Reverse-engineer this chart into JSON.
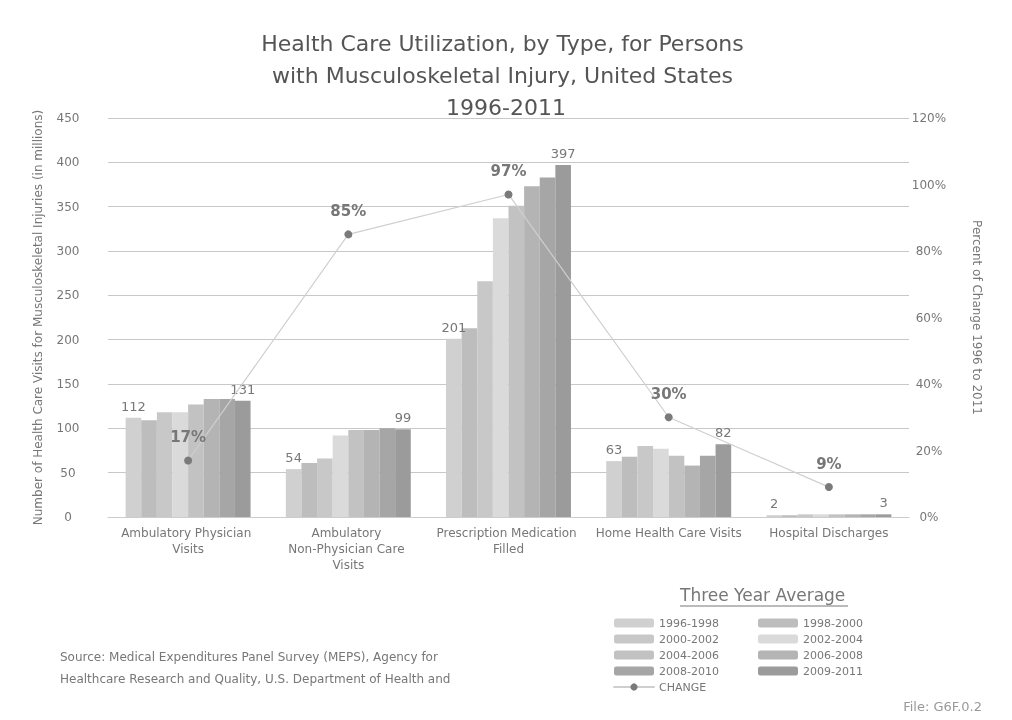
{
  "chart_data": {
    "type": "bar",
    "title": "Health Care Utilization, by Type, for Persons with Musculoskeletal Injury, United States 1996-2011",
    "ylabel": "Number of Health Care Visits for Musculoskeletal Injuries (in millions)",
    "y2label": "Percent of Change 1996 to 2011",
    "legend_title": "Three Year Average",
    "annotations": [
      "Source: Medical Expenditures Panel Survey (MEPS), Agency for Healthcare Research and Quality, U.S. Department of Health and",
      "File: G6F.0.2"
    ],
    "categories": [
      "Ambulatory Physician Visits",
      "Ambulatory Non-Physician Care Visits",
      "Prescription Medication Filled",
      "Home Health Care Visits",
      "Hospital Discharges"
    ],
    "series": [
      {
        "name": "1996-1998",
        "color": "#d0d0d0",
        "values": [
          112,
          54,
          201,
          63,
          2
        ],
        "value_labels": [
          "112",
          "54",
          "201",
          "63",
          "2"
        ]
      },
      {
        "name": "1998-2000",
        "color": "#bdbdbd",
        "values": [
          109,
          61,
          213,
          68,
          2
        ]
      },
      {
        "name": "2000-2002",
        "color": "#c8c8c8",
        "values": [
          118,
          66,
          266,
          80,
          3
        ]
      },
      {
        "name": "2002-2004",
        "color": "#dadada",
        "values": [
          118,
          92,
          337,
          77,
          3
        ]
      },
      {
        "name": "2004-2006",
        "color": "#c2c2c2",
        "values": [
          127,
          98,
          351,
          69,
          3
        ]
      },
      {
        "name": "2006-2008",
        "color": "#b4b4b4",
        "values": [
          133,
          98,
          373,
          58,
          3
        ]
      },
      {
        "name": "2008-2010",
        "color": "#a6a6a6",
        "values": [
          133,
          100,
          383,
          69,
          3
        ]
      },
      {
        "name": "2009-2011",
        "color": "#9b9b9b",
        "values": [
          131,
          99,
          397,
          82,
          3
        ],
        "value_labels": [
          "131",
          "99",
          "397",
          "82",
          "3"
        ]
      },
      {
        "name": "CHANGE",
        "type": "line",
        "axis": "y2",
        "color": "#7a7a7a",
        "marker": "circle",
        "values": [
          17,
          85,
          97,
          30,
          9
        ],
        "value_labels": [
          "17%",
          "85%",
          "97%",
          "30%",
          "9%"
        ]
      }
    ],
    "ylim": [
      0,
      450
    ],
    "yticks": [
      0,
      50,
      100,
      150,
      200,
      250,
      300,
      350,
      400,
      450
    ],
    "y2lim": [
      0,
      120
    ],
    "y2ticks": [
      {
        "value": 0,
        "label": "0%"
      },
      {
        "value": 20,
        "label": "20%"
      },
      {
        "value": 40,
        "label": "40%"
      },
      {
        "value": 60,
        "label": "60%"
      },
      {
        "value": 80,
        "label": "80%"
      },
      {
        "value": 100,
        "label": "100%"
      },
      {
        "value": 120,
        "label": "120%"
      }
    ],
    "grid": "y",
    "legend": "bottom right"
  }
}
